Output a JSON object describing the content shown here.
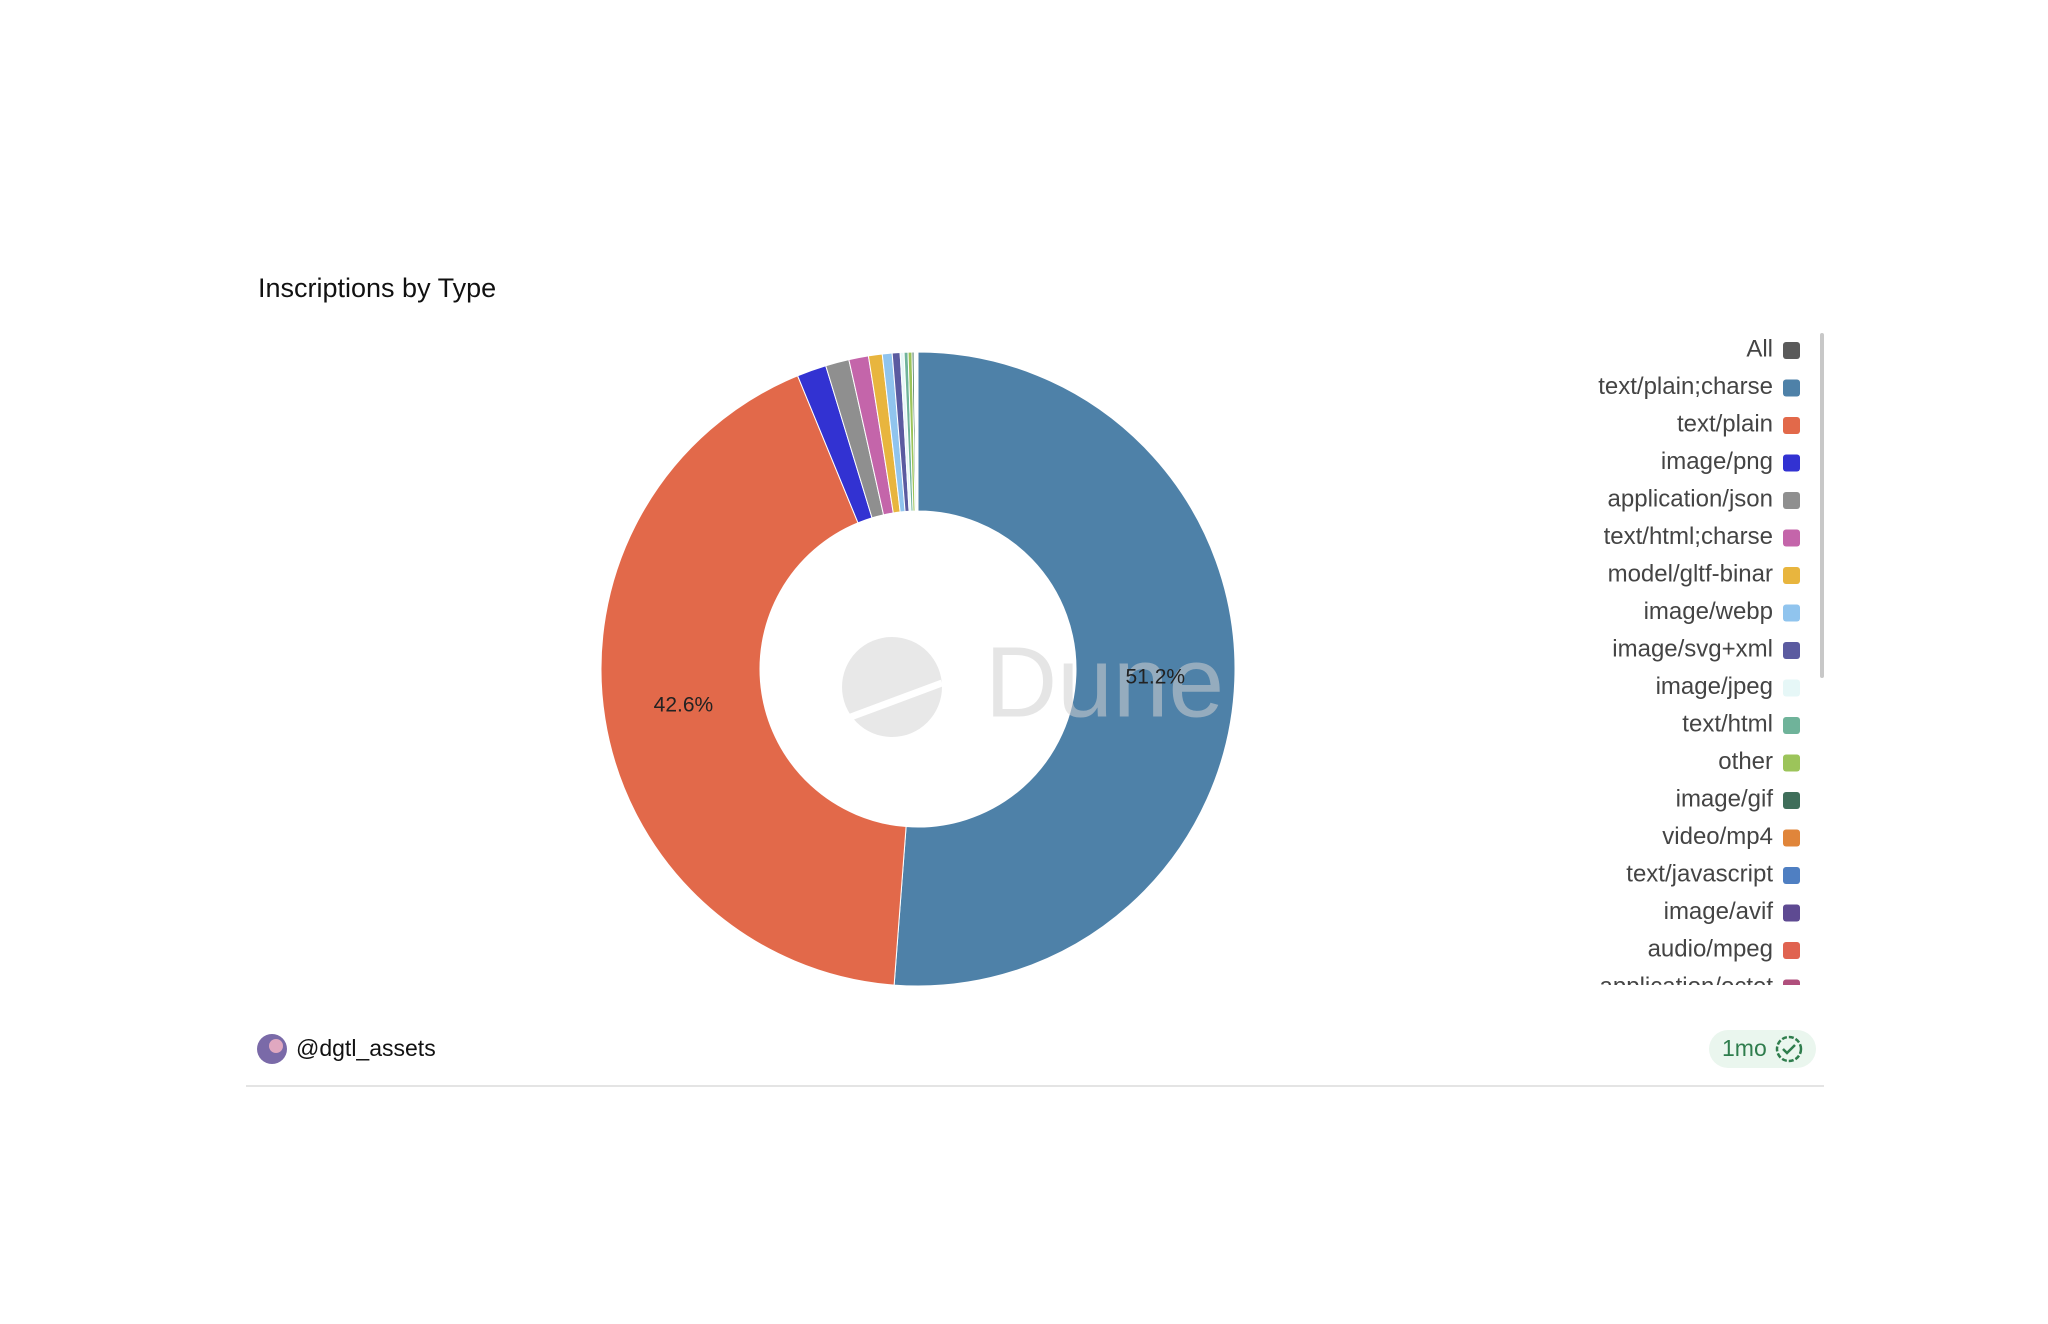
{
  "chart_data": {
    "type": "pie",
    "title": "Inscriptions by Type",
    "watermark": "Dune",
    "categories": [
      "All",
      "text/plain;charse",
      "text/plain",
      "image/png",
      "application/json",
      "text/html;charse",
      "model/gltf-binar",
      "image/webp",
      "image/svg+xml",
      "image/jpeg",
      "text/html",
      "other",
      "image/gif",
      "video/mp4",
      "text/javascript",
      "image/avif",
      "audio/mpeg",
      "application/octet"
    ],
    "values": [
      null,
      51.2,
      42.6,
      1.5,
      1.2,
      1.0,
      0.7,
      0.5,
      0.4,
      0.2,
      0.2,
      0.2,
      0.1,
      0.05,
      0.05,
      0.04,
      0.03,
      0.03
    ],
    "value_labels": [
      null,
      "51.2%",
      "42.6%",
      null,
      null,
      null,
      null,
      null,
      null,
      null,
      null,
      null,
      null,
      null,
      null,
      null,
      null,
      null
    ],
    "colors": [
      "#5a5a5a",
      "#4e81a8",
      "#e2694a",
      "#3232d2",
      "#8f8f8f",
      "#c465aa",
      "#e8b53e",
      "#90c4ee",
      "#5b5ba0",
      "#e6f7f7",
      "#6fb39a",
      "#9cc45a",
      "#3f6e5a",
      "#e0853a",
      "#4f7fc2",
      "#5e4a92",
      "#e06350",
      "#b04f7c"
    ],
    "legend": "right"
  },
  "footer": {
    "author": "@dgtl_assets",
    "age": "1mo"
  }
}
